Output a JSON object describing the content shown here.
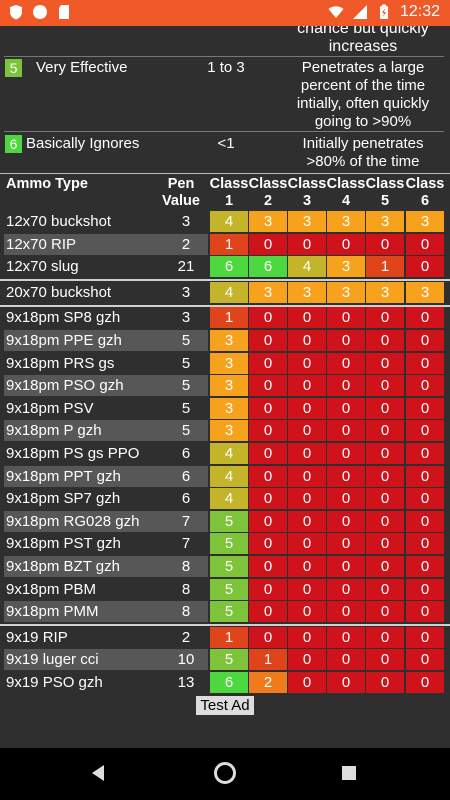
{
  "status_bar": {
    "time": "12:32"
  },
  "colors": {
    "status_bar": "#f05a28",
    "grade_0": "#d0121a",
    "grade_1": "#e0441b",
    "grade_2": "#f07b1c",
    "grade_3": "#f7a21c",
    "grade_4": "#c3b42a",
    "grade_5": "#7dc43a",
    "grade_6": "#4cd83e"
  },
  "legend": {
    "top_desc": [
      "chance but quickly",
      "increases"
    ],
    "rows": [
      {
        "num": "5",
        "name": "Very Effective",
        "range": "1 to 3",
        "desc": [
          "Penetrates a large",
          "percent of the time",
          "intially, often quickly",
          "going to >90%"
        ]
      },
      {
        "num": "6",
        "name": "Basically Ignores",
        "range": "<1",
        "desc": [
          "Initially penetrates",
          ">80% of the time"
        ]
      }
    ]
  },
  "table": {
    "headers": {
      "ammo": "Ammo Type",
      "pen1": "Pen",
      "pen2": "Value",
      "class_word": "Class",
      "classes": [
        "1",
        "2",
        "3",
        "4",
        "5",
        "6"
      ]
    },
    "groups": [
      [
        {
          "name": "12x70 buckshot",
          "pen": "3",
          "vals": [
            4,
            3,
            3,
            3,
            3,
            3
          ]
        },
        {
          "name": "12x70 RIP",
          "pen": "2",
          "vals": [
            1,
            0,
            0,
            0,
            0,
            0
          ]
        },
        {
          "name": "12x70 slug",
          "pen": "21",
          "vals": [
            6,
            6,
            4,
            3,
            1,
            0
          ]
        }
      ],
      [
        {
          "name": "20x70 buckshot",
          "pen": "3",
          "vals": [
            4,
            3,
            3,
            3,
            3,
            3
          ]
        }
      ],
      [
        {
          "name": "9x18pm SP8 gzh",
          "pen": "3",
          "vals": [
            1,
            0,
            0,
            0,
            0,
            0
          ]
        },
        {
          "name": "9x18pm PPE gzh",
          "pen": "5",
          "vals": [
            3,
            0,
            0,
            0,
            0,
            0
          ]
        },
        {
          "name": "9x18pm PRS gs",
          "pen": "5",
          "vals": [
            3,
            0,
            0,
            0,
            0,
            0
          ]
        },
        {
          "name": "9x18pm PSO gzh",
          "pen": "5",
          "vals": [
            3,
            0,
            0,
            0,
            0,
            0
          ]
        },
        {
          "name": "9x18pm PSV",
          "pen": "5",
          "vals": [
            3,
            0,
            0,
            0,
            0,
            0
          ]
        },
        {
          "name": "9x18pm P gzh",
          "pen": "5",
          "vals": [
            3,
            0,
            0,
            0,
            0,
            0
          ]
        },
        {
          "name": "9x18pm PS gs PPO",
          "pen": "6",
          "vals": [
            4,
            0,
            0,
            0,
            0,
            0
          ]
        },
        {
          "name": "9x18pm PPT gzh",
          "pen": "6",
          "vals": [
            4,
            0,
            0,
            0,
            0,
            0
          ]
        },
        {
          "name": "9x18pm SP7 gzh",
          "pen": "6",
          "vals": [
            4,
            0,
            0,
            0,
            0,
            0
          ]
        },
        {
          "name": "9x18pm RG028 gzh",
          "pen": "7",
          "vals": [
            5,
            0,
            0,
            0,
            0,
            0
          ]
        },
        {
          "name": "9x18pm PST gzh",
          "pen": "7",
          "vals": [
            5,
            0,
            0,
            0,
            0,
            0
          ]
        },
        {
          "name": "9x18pm BZT gzh",
          "pen": "8",
          "vals": [
            5,
            0,
            0,
            0,
            0,
            0
          ]
        },
        {
          "name": "9x18pm PBM",
          "pen": "8",
          "vals": [
            5,
            0,
            0,
            0,
            0,
            0
          ]
        },
        {
          "name": "9x18pm PMM",
          "pen": "8",
          "vals": [
            5,
            0,
            0,
            0,
            0,
            0
          ]
        }
      ],
      [
        {
          "name": "9x19 RIP",
          "pen": "2",
          "vals": [
            1,
            0,
            0,
            0,
            0,
            0
          ]
        },
        {
          "name": "9x19 luger cci",
          "pen": "10",
          "vals": [
            5,
            1,
            0,
            0,
            0,
            0
          ]
        },
        {
          "name": "9x19 PSO gzh",
          "pen": "13",
          "vals": [
            6,
            2,
            0,
            0,
            0,
            0
          ]
        }
      ]
    ]
  },
  "ad": {
    "label": "Test Ad"
  }
}
